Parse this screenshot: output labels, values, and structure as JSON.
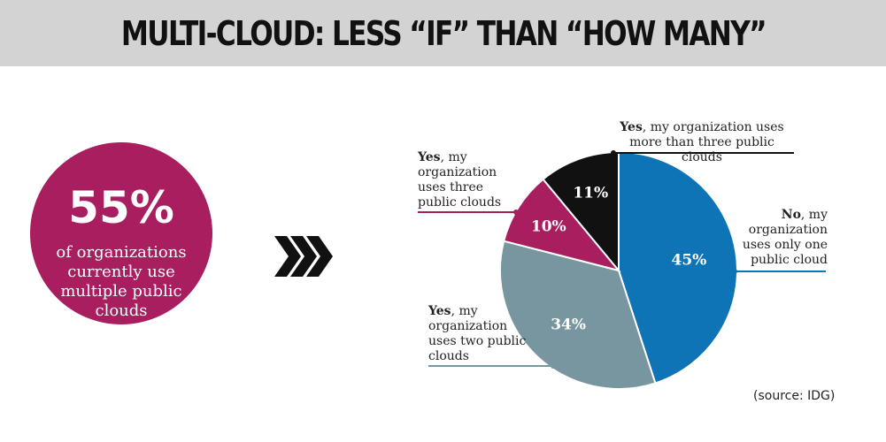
{
  "header": {
    "title": "MULTI-CLOUD: LESS “IF” THAN “HOW MANY”"
  },
  "stat": {
    "value": "55%",
    "text": "of organizations currently use multiple public clouds"
  },
  "source": "(source: IDG)",
  "colors": {
    "banner": "#d3d3d3",
    "magenta": "#a81e5f",
    "blue": "#0f74b6",
    "gray": "#7896a0",
    "black": "#111111"
  },
  "chart_data": {
    "type": "pie",
    "slices": [
      {
        "label_bold": "No",
        "label_rest": ", my organization uses only one public cloud",
        "value": 45,
        "display": "45%",
        "color": "#0f74b6"
      },
      {
        "label_bold": "Yes",
        "label_rest": ", my organization uses two public clouds",
        "value": 34,
        "display": "34%",
        "color": "#7896a0"
      },
      {
        "label_bold": "Yes",
        "label_rest": ", my organization uses three public clouds",
        "value": 10,
        "display": "10%",
        "color": "#a81e5f"
      },
      {
        "label_bold": "Yes",
        "label_rest": ", my organization uses more than three public clouds",
        "value": 11,
        "display": "11%",
        "color": "#111111"
      }
    ]
  }
}
